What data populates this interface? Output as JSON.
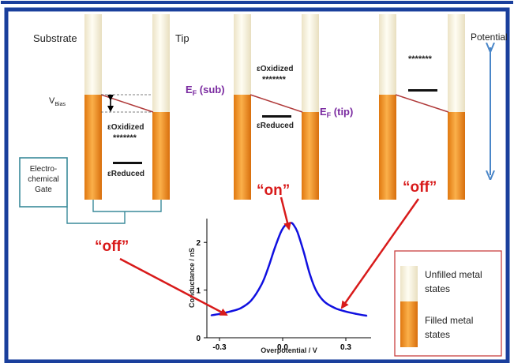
{
  "colors": {
    "frame_blue": "#1a3f9c",
    "filled_orange": "#f08a1c",
    "unfilled_cream": "#f7f1dc",
    "fermi_line": "#b03a3a",
    "arrow_red": "#d81a1a",
    "potential_arrow": "#4a86c8",
    "label_purple": "#7a2aa0",
    "gate_box": "#3a8a9a",
    "legend_border": "#c94040",
    "curve_blue": "#1010e0"
  },
  "panel1": {
    "substrate_label": "Substrate",
    "tip_label": "Tip",
    "vbias_label": "V",
    "vbias_sub": "Bias",
    "oxidized_label": "εOxidized",
    "oxidized_stars": "*******",
    "reduced_label": "εReduced"
  },
  "gate": {
    "line1": "Electro-",
    "line2": "chemical",
    "line3": "Gate"
  },
  "panel2": {
    "ef_sub": "E",
    "ef_sub_sub": "F",
    "ef_sub_paren": " (sub)",
    "ef_tip": "E",
    "ef_tip_sub": "F",
    "ef_tip_paren": " (tip)",
    "oxidized_label": "εOxidized",
    "oxidized_stars": "*******",
    "reduced_label": "εReduced"
  },
  "panel3": {
    "stars": "*******"
  },
  "potential_label": "Potential",
  "annotations": {
    "on": "“on”",
    "off_right": "“off”",
    "off_left": "“off”"
  },
  "legend": {
    "unfilled": [
      "Unfilled metal",
      "states"
    ],
    "filled": [
      "Filled metal",
      "states"
    ]
  },
  "chart_data": {
    "type": "line",
    "xlabel": "Overpotential / V",
    "ylabel": "Conductance / nS",
    "xlim": [
      -0.36,
      0.42
    ],
    "ylim": [
      0,
      2.5
    ],
    "xticks": [
      -0.3,
      0.0,
      0.3
    ],
    "xtick_labels": [
      "-0.3",
      "0.0",
      "0.3"
    ],
    "yticks": [
      0,
      1,
      2
    ],
    "ytick_labels": [
      "0",
      "1",
      "2"
    ],
    "series": [
      {
        "x": [
          -0.34,
          -0.3,
          -0.25,
          -0.2,
          -0.15,
          -0.1,
          -0.07,
          -0.04,
          -0.01,
          0.01,
          0.03,
          0.04,
          0.05,
          0.07,
          0.1,
          0.13,
          0.16,
          0.2,
          0.25,
          0.3,
          0.35,
          0.4
        ],
        "values": [
          0.47,
          0.5,
          0.55,
          0.62,
          0.78,
          1.12,
          1.45,
          1.85,
          2.2,
          2.35,
          2.4,
          2.41,
          2.38,
          2.22,
          1.8,
          1.32,
          0.98,
          0.75,
          0.62,
          0.55,
          0.5,
          0.46
        ]
      }
    ]
  }
}
